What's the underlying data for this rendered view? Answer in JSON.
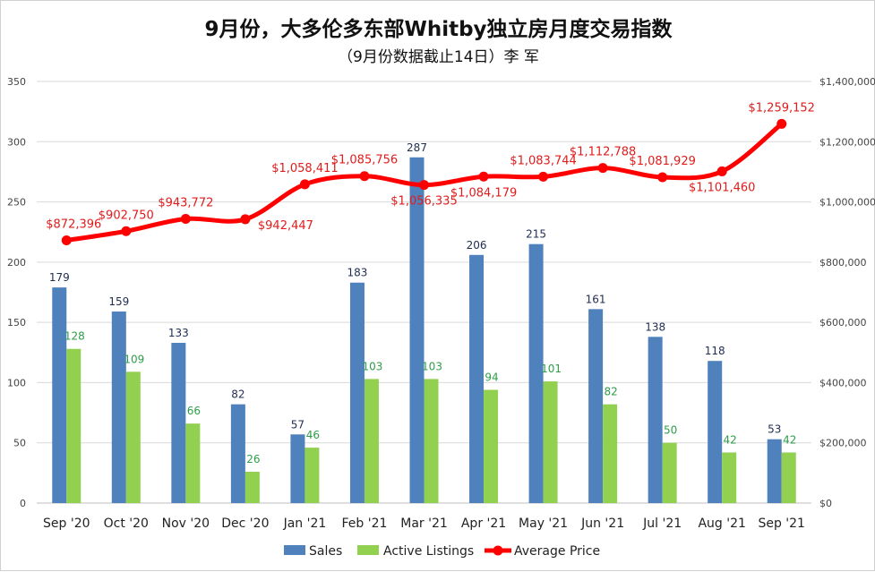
{
  "title": "9月份，大多伦多东部Whitby独立房月度交易指数",
  "subtitle": "（9月份数据截止14日）李 军",
  "chart_data": {
    "type": "bar+line",
    "categories": [
      "Sep '20",
      "Oct '20",
      "Nov '20",
      "Dec '20",
      "Jan '21",
      "Feb '21",
      "Mar '21",
      "Apr '21",
      "May '21",
      "Jun '21",
      "Jul '21",
      "Aug '21",
      "Sep '21"
    ],
    "series": [
      {
        "name": "Sales",
        "type": "bar",
        "axis": "left",
        "color": "#4f81bd",
        "values": [
          179,
          159,
          133,
          82,
          57,
          183,
          287,
          206,
          215,
          161,
          138,
          118,
          53
        ]
      },
      {
        "name": "Active Listings",
        "type": "bar",
        "axis": "left",
        "color": "#92d050",
        "values": [
          128,
          109,
          66,
          26,
          46,
          103,
          103,
          94,
          101,
          82,
          50,
          42,
          42
        ]
      },
      {
        "name": "Average Price",
        "type": "line",
        "axis": "right",
        "color": "#ff0000",
        "values": [
          872396,
          902750,
          943772,
          942447,
          1058411,
          1085756,
          1056335,
          1084179,
          1083744,
          1112788,
          1081929,
          1101460,
          1259152
        ]
      }
    ],
    "price_labels": [
      "$872,396",
      "$902,750",
      "$943,772",
      "$942,447",
      "$1,058,411",
      "$1,085,756",
      "$1,056,335",
      "$1,084,179",
      "$1,083,744",
      "$1,112,788",
      "$1,081,929",
      "$1,101,460",
      "$1,259,152"
    ],
    "price_label_pos": [
      "above",
      "above",
      "above",
      "right",
      "above",
      "above",
      "below",
      "below",
      "above",
      "above",
      "above",
      "below",
      "above"
    ],
    "y_left": {
      "min": 0,
      "max": 350,
      "ticks": [
        "0",
        "50",
        "100",
        "150",
        "200",
        "250",
        "300",
        "350"
      ]
    },
    "y_right": {
      "min": 0,
      "max": 1400000,
      "ticks": [
        "$0",
        "$200,000",
        "$400,000",
        "$600,000",
        "$800,000",
        "$1,000,000",
        "$1,200,000",
        "$1,400,000"
      ]
    },
    "legend": [
      "Sales",
      "Active Listings",
      "Average Price"
    ],
    "legend_position": "bottom",
    "grid": true
  }
}
